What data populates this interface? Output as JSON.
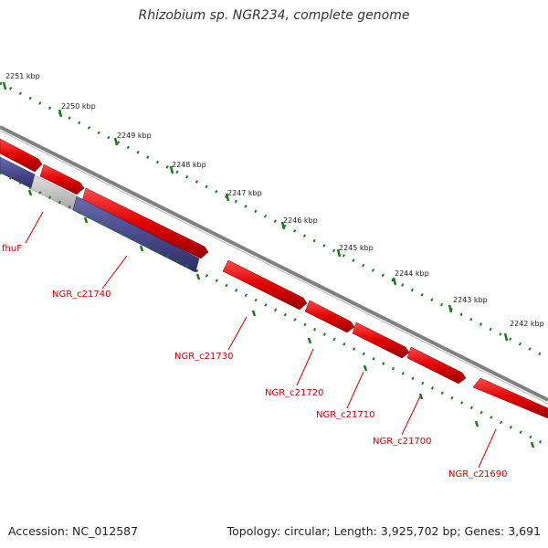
{
  "title": "Rhizobium sp. NGR234, complete genome",
  "footer": {
    "accession": "Accession: NC_012587",
    "summary": "Topology: circular; Length: 3,925,702 bp; Genes: 3,691"
  },
  "kbp_ticks": [
    "2251 kbp",
    "2250 kbp",
    "2249 kbp",
    "2248 kbp",
    "2247 kbp",
    "2246 kbp",
    "2245 kbp",
    "2244 kbp",
    "2243 kbp",
    "2242 kbp"
  ],
  "gene_labels": [
    "fhuF",
    "NGR_c21740",
    "NGR_c21730",
    "NGR_c21720",
    "NGR_c21710",
    "NGR_c21700",
    "NGR_c21690"
  ],
  "colors": {
    "forward_gene": "#e00000",
    "reverse_gene": "#4a4a8e",
    "pseudo_gene": "#c0c0c0",
    "backbone": "#808080",
    "tick_ring": "#1a7a1a",
    "label": "#cc0000"
  }
}
